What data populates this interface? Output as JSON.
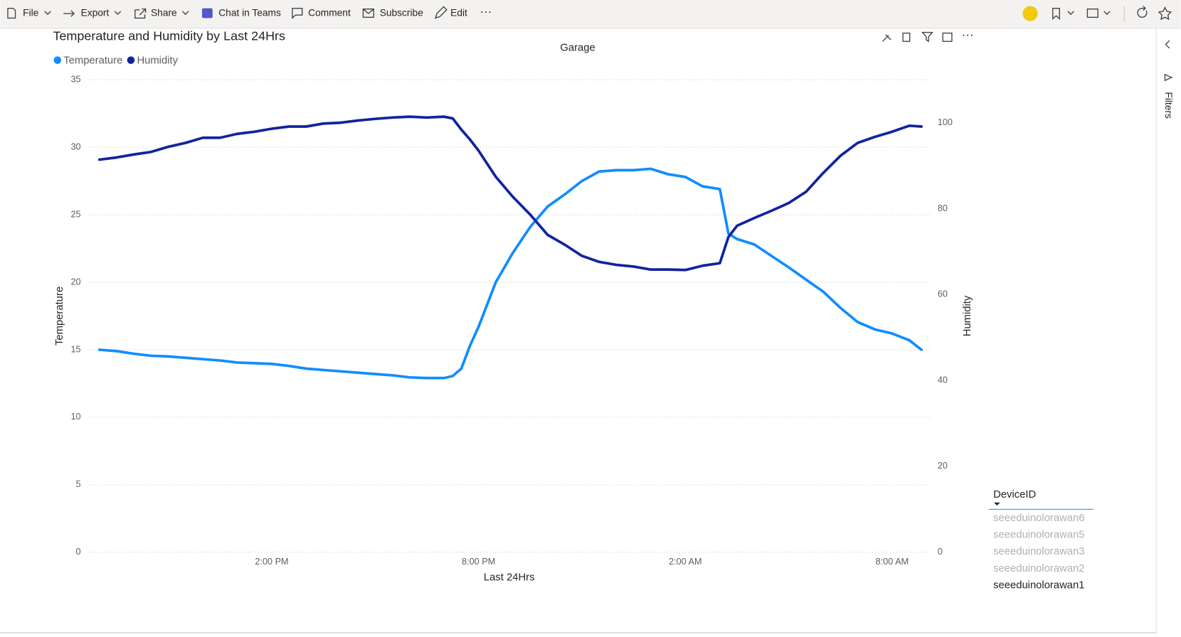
{
  "toolbar": {
    "items": [
      "File",
      "Export",
      "Share",
      "Chat in Teams",
      "Comment",
      "Subscribe",
      "Edit"
    ]
  },
  "chart_data": {
    "type": "line",
    "title": "Temperature and Humidity by Last 24Hrs",
    "subtitle": "Garage",
    "x_label": "Last 24Hrs",
    "y_label": "Temperature",
    "y2_label": "Humidity",
    "x": [
      9.0,
      9.5,
      10.0,
      10.5,
      11.0,
      11.5,
      12.0,
      12.5,
      13.0,
      13.5,
      14.0,
      14.5,
      15.0,
      15.5,
      16.0,
      16.5,
      17.0,
      17.5,
      18.0,
      18.5,
      19.0,
      19.25,
      19.5,
      19.75,
      20.0,
      20.5,
      21.0,
      21.5,
      22.0,
      22.5,
      23.0,
      23.5,
      24.0,
      24.5,
      25.0,
      25.5,
      26.0,
      26.5,
      27.0,
      27.25,
      27.5,
      28.0,
      28.5,
      29.0,
      29.5,
      30.0,
      30.5,
      31.0,
      31.5,
      32.0,
      32.5,
      32.85
    ],
    "series": [
      {
        "name": "Temperature",
        "color": "#118dff",
        "axis": "y",
        "values": [
          15.0,
          14.9,
          14.7,
          14.55,
          14.5,
          14.4,
          14.3,
          14.2,
          14.05,
          14.0,
          13.95,
          13.8,
          13.6,
          13.5,
          13.4,
          13.3,
          13.2,
          13.1,
          12.95,
          12.9,
          12.9,
          13.05,
          13.6,
          15.3,
          16.7,
          20.0,
          22.2,
          24.1,
          25.6,
          26.5,
          27.5,
          28.2,
          28.3,
          28.3,
          28.4,
          28.0,
          27.8,
          27.1,
          26.9,
          23.6,
          23.2,
          22.8,
          21.95,
          21.1,
          20.2,
          19.3,
          18.1,
          17.05,
          16.5,
          16.2,
          15.7,
          15.0
        ]
      },
      {
        "name": "Humidity",
        "color": "#12239e",
        "axis": "y2",
        "values": [
          91.4,
          91.9,
          92.6,
          93.2,
          94.4,
          95.3,
          96.5,
          96.5,
          97.4,
          97.9,
          98.6,
          99.1,
          99.1,
          99.8,
          100.0,
          100.5,
          100.9,
          101.2,
          101.4,
          101.2,
          101.4,
          101.0,
          98.4,
          96.1,
          93.5,
          87.4,
          82.7,
          78.6,
          73.9,
          71.6,
          69.0,
          67.6,
          66.9,
          66.5,
          65.8,
          65.8,
          65.7,
          66.7,
          67.3,
          73.4,
          76.0,
          77.8,
          79.5,
          81.3,
          83.9,
          88.3,
          92.3,
          95.3,
          96.7,
          97.9,
          99.3,
          99.1
        ]
      }
    ],
    "xlim": [
      8.7,
      33.1
    ],
    "xticks": [
      {
        "value": 14,
        "label": "2:00 PM"
      },
      {
        "value": 20,
        "label": "8:00 PM"
      },
      {
        "value": 26,
        "label": "2:00 AM"
      },
      {
        "value": 32,
        "label": "8:00 AM"
      }
    ],
    "ylim": [
      0,
      35
    ],
    "yticks": [
      0,
      5,
      10,
      15,
      20,
      25,
      30,
      35
    ],
    "y2lim": [
      0,
      110
    ],
    "y2ticks": [
      0,
      20,
      40,
      60,
      80,
      100
    ],
    "grid": true,
    "legend": "top-left"
  },
  "slicer": {
    "title": "DeviceID",
    "items": [
      "seeeduinolorawan6",
      "seeeduinolorawan5",
      "seeeduinolorawan3",
      "seeeduinolorawan2",
      "seeeduinolorawan1"
    ]
  },
  "filters_pane": {
    "label": "Filters"
  }
}
